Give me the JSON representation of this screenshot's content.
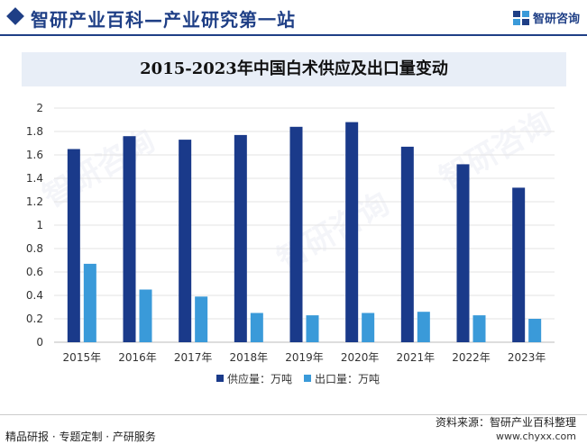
{
  "header": {
    "site_title": "智研产业百科—产业研究第一站",
    "brand_name": "智研咨询",
    "brand_icon": "zhiyan-logo-icon",
    "accent_color": "#1f3f86"
  },
  "footer": {
    "source": "资料来源：智研产业百科整理",
    "tagline": "精品研报 · 专题定制 · 产研服务",
    "website": "www.chyxx.com"
  },
  "watermark_text": "智研咨询",
  "chart_data": {
    "type": "bar",
    "title": "2015-2023年中国白术供应及出口量变动",
    "categories": [
      "2015年",
      "2016年",
      "2017年",
      "2018年",
      "2019年",
      "2020年",
      "2021年",
      "2022年",
      "2023年"
    ],
    "series": [
      {
        "name": "供应量：万吨",
        "color": "#1a3a8a",
        "values": [
          1.65,
          1.76,
          1.73,
          1.77,
          1.84,
          1.88,
          1.67,
          1.52,
          1.32
        ]
      },
      {
        "name": "出口量：万吨",
        "color": "#3a9ad9",
        "values": [
          0.67,
          0.45,
          0.39,
          0.25,
          0.23,
          0.25,
          0.26,
          0.23,
          0.2
        ]
      }
    ],
    "ylim": [
      0,
      2
    ],
    "yticks": [
      0,
      0.2,
      0.4,
      0.6,
      0.8,
      1,
      1.2,
      1.4,
      1.6,
      1.8,
      2
    ],
    "grid": true,
    "legend_position": "bottom"
  }
}
